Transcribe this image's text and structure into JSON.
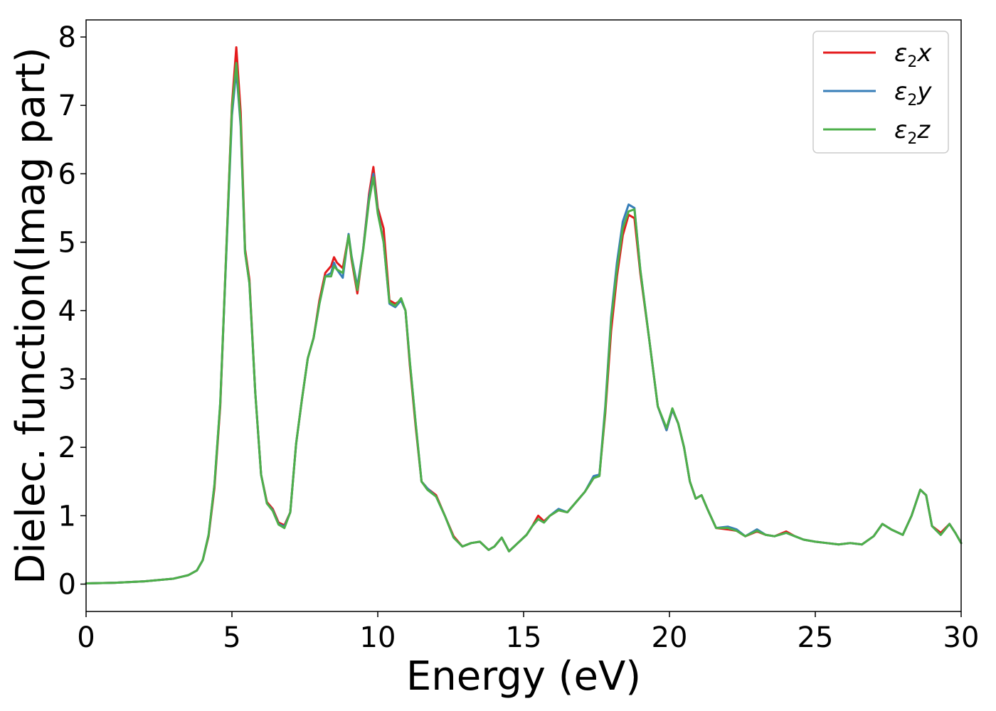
{
  "chart_data": {
    "type": "line",
    "xlabel": "Energy (eV)",
    "ylabel": "Dielec. function(Imag part)",
    "xlim": [
      0,
      30
    ],
    "ylim": [
      -0.4,
      8.25
    ],
    "xticks": [
      0,
      5,
      10,
      15,
      20,
      25,
      30
    ],
    "yticks": [
      0,
      1,
      2,
      3,
      4,
      5,
      6,
      7,
      8
    ],
    "grid": false,
    "legend_position": "top-right",
    "series": [
      {
        "name": "ε2x",
        "legend": {
          "base": "ε",
          "sub": "2",
          "var": "x"
        },
        "color": "#e41a1c",
        "x": [
          0,
          1,
          2,
          3,
          3.5,
          3.8,
          4.0,
          4.2,
          4.4,
          4.6,
          4.8,
          5.0,
          5.15,
          5.3,
          5.45,
          5.6,
          5.8,
          6.0,
          6.2,
          6.4,
          6.6,
          6.8,
          7.0,
          7.2,
          7.4,
          7.6,
          7.8,
          8.0,
          8.2,
          8.4,
          8.5,
          8.6,
          8.8,
          9.0,
          9.1,
          9.3,
          9.5,
          9.7,
          9.85,
          10.0,
          10.2,
          10.4,
          10.6,
          10.8,
          10.95,
          11.1,
          11.3,
          11.5,
          11.7,
          12.0,
          12.3,
          12.6,
          12.9,
          13.2,
          13.5,
          13.8,
          14.0,
          14.25,
          14.5,
          14.8,
          15.1,
          15.3,
          15.5,
          15.7,
          15.9,
          16.2,
          16.5,
          16.8,
          17.1,
          17.4,
          17.6,
          17.8,
          18.0,
          18.2,
          18.4,
          18.6,
          18.8,
          19.0,
          19.3,
          19.6,
          19.9,
          20.1,
          20.3,
          20.5,
          20.7,
          20.9,
          21.1,
          21.3,
          21.6,
          22.0,
          22.3,
          22.6,
          23.0,
          23.3,
          23.6,
          24.0,
          24.3,
          24.6,
          25.0,
          25.4,
          25.8,
          26.2,
          26.6,
          27.0,
          27.3,
          27.6,
          28.0,
          28.3,
          28.6,
          28.8,
          29.0,
          29.3,
          29.6,
          29.8,
          30.0
        ],
        "y": [
          0.01,
          0.02,
          0.04,
          0.08,
          0.13,
          0.2,
          0.35,
          0.7,
          1.4,
          2.6,
          4.8,
          7.0,
          7.85,
          6.9,
          4.9,
          4.45,
          2.8,
          1.6,
          1.2,
          1.1,
          0.9,
          0.86,
          1.05,
          2.05,
          2.7,
          3.3,
          3.6,
          4.15,
          4.55,
          4.65,
          4.78,
          4.7,
          4.62,
          5.1,
          4.75,
          4.25,
          4.9,
          5.7,
          6.1,
          5.5,
          5.2,
          4.15,
          4.1,
          4.15,
          4.0,
          3.2,
          2.3,
          1.5,
          1.4,
          1.3,
          1.0,
          0.7,
          0.55,
          0.6,
          0.62,
          0.5,
          0.55,
          0.68,
          0.48,
          0.6,
          0.72,
          0.85,
          1.0,
          0.92,
          1.0,
          1.08,
          1.05,
          1.2,
          1.35,
          1.55,
          1.6,
          2.5,
          3.7,
          4.5,
          5.1,
          5.4,
          5.35,
          4.55,
          3.6,
          2.6,
          2.25,
          2.55,
          2.35,
          2.0,
          1.5,
          1.25,
          1.3,
          1.1,
          0.82,
          0.8,
          0.78,
          0.7,
          0.77,
          0.72,
          0.7,
          0.77,
          0.7,
          0.65,
          0.62,
          0.6,
          0.58,
          0.6,
          0.58,
          0.7,
          0.88,
          0.8,
          0.72,
          1.0,
          1.38,
          1.3,
          0.85,
          0.75,
          0.88,
          0.75,
          0.6
        ]
      },
      {
        "name": "ε2y",
        "legend": {
          "base": "ε",
          "sub": "2",
          "var": "y"
        },
        "color": "#377eb8",
        "x": [
          0,
          1,
          2,
          3,
          3.5,
          3.8,
          4.0,
          4.2,
          4.4,
          4.6,
          4.8,
          5.0,
          5.15,
          5.3,
          5.45,
          5.6,
          5.8,
          6.0,
          6.2,
          6.4,
          6.6,
          6.8,
          7.0,
          7.2,
          7.4,
          7.6,
          7.8,
          8.0,
          8.2,
          8.4,
          8.5,
          8.6,
          8.8,
          9.0,
          9.1,
          9.3,
          9.5,
          9.7,
          9.85,
          10.0,
          10.2,
          10.4,
          10.6,
          10.8,
          10.95,
          11.1,
          11.3,
          11.5,
          11.7,
          12.0,
          12.3,
          12.6,
          12.9,
          13.2,
          13.5,
          13.8,
          14.0,
          14.25,
          14.5,
          14.8,
          15.1,
          15.3,
          15.5,
          15.7,
          15.9,
          16.2,
          16.5,
          16.8,
          17.1,
          17.4,
          17.6,
          17.8,
          18.0,
          18.2,
          18.4,
          18.6,
          18.8,
          19.0,
          19.3,
          19.6,
          19.9,
          20.1,
          20.3,
          20.5,
          20.7,
          20.9,
          21.1,
          21.3,
          21.6,
          22.0,
          22.3,
          22.6,
          23.0,
          23.3,
          23.6,
          24.0,
          24.3,
          24.6,
          25.0,
          25.4,
          25.8,
          26.2,
          26.6,
          27.0,
          27.3,
          27.6,
          28.0,
          28.3,
          28.6,
          28.8,
          29.0,
          29.3,
          29.6,
          29.8,
          30.0
        ],
        "y": [
          0.01,
          0.02,
          0.04,
          0.08,
          0.13,
          0.2,
          0.35,
          0.72,
          1.45,
          2.65,
          4.75,
          6.85,
          7.52,
          6.7,
          4.85,
          4.4,
          2.8,
          1.6,
          1.18,
          1.08,
          0.88,
          0.84,
          1.05,
          2.05,
          2.7,
          3.3,
          3.6,
          4.1,
          4.5,
          4.55,
          4.7,
          4.6,
          4.48,
          5.12,
          4.8,
          4.35,
          4.9,
          5.65,
          6.0,
          5.45,
          5.0,
          4.1,
          4.05,
          4.15,
          4.0,
          3.25,
          2.35,
          1.5,
          1.4,
          1.28,
          1.0,
          0.68,
          0.55,
          0.6,
          0.62,
          0.5,
          0.55,
          0.68,
          0.48,
          0.6,
          0.72,
          0.85,
          0.95,
          0.9,
          1.0,
          1.1,
          1.05,
          1.2,
          1.35,
          1.58,
          1.6,
          2.6,
          3.9,
          4.7,
          5.3,
          5.55,
          5.5,
          4.6,
          3.6,
          2.6,
          2.25,
          2.55,
          2.35,
          2.0,
          1.5,
          1.25,
          1.3,
          1.1,
          0.82,
          0.84,
          0.8,
          0.7,
          0.8,
          0.72,
          0.7,
          0.75,
          0.7,
          0.65,
          0.62,
          0.6,
          0.58,
          0.6,
          0.58,
          0.7,
          0.88,
          0.8,
          0.72,
          1.0,
          1.38,
          1.3,
          0.85,
          0.72,
          0.88,
          0.75,
          0.6
        ]
      },
      {
        "name": "ε2z",
        "legend": {
          "base": "ε",
          "sub": "2",
          "var": "z"
        },
        "color": "#4daf4a",
        "x": [
          0,
          1,
          2,
          3,
          3.5,
          3.8,
          4.0,
          4.2,
          4.4,
          4.6,
          4.8,
          5.0,
          5.15,
          5.3,
          5.45,
          5.6,
          5.8,
          6.0,
          6.2,
          6.4,
          6.6,
          6.8,
          7.0,
          7.2,
          7.4,
          7.6,
          7.8,
          8.0,
          8.2,
          8.4,
          8.5,
          8.6,
          8.8,
          9.0,
          9.1,
          9.3,
          9.5,
          9.7,
          9.85,
          10.0,
          10.2,
          10.4,
          10.6,
          10.8,
          10.95,
          11.1,
          11.3,
          11.5,
          11.7,
          12.0,
          12.3,
          12.6,
          12.9,
          13.2,
          13.5,
          13.8,
          14.0,
          14.25,
          14.5,
          14.8,
          15.1,
          15.3,
          15.5,
          15.7,
          15.9,
          16.2,
          16.5,
          16.8,
          17.1,
          17.4,
          17.6,
          17.8,
          18.0,
          18.2,
          18.4,
          18.6,
          18.8,
          19.0,
          19.3,
          19.6,
          19.9,
          20.1,
          20.3,
          20.5,
          20.7,
          20.9,
          21.1,
          21.3,
          21.6,
          22.0,
          22.3,
          22.6,
          23.0,
          23.3,
          23.6,
          24.0,
          24.3,
          24.6,
          25.0,
          25.4,
          25.8,
          26.2,
          26.6,
          27.0,
          27.3,
          27.6,
          28.0,
          28.3,
          28.6,
          28.8,
          29.0,
          29.3,
          29.6,
          29.8,
          30.0
        ],
        "y": [
          0.01,
          0.02,
          0.04,
          0.08,
          0.13,
          0.2,
          0.35,
          0.72,
          1.45,
          2.65,
          4.8,
          6.95,
          7.62,
          6.75,
          4.85,
          4.4,
          2.8,
          1.6,
          1.18,
          1.07,
          0.87,
          0.82,
          1.05,
          2.05,
          2.7,
          3.3,
          3.6,
          4.1,
          4.5,
          4.5,
          4.65,
          4.6,
          4.55,
          5.1,
          4.78,
          4.3,
          4.88,
          5.6,
          5.95,
          5.42,
          5.0,
          4.12,
          4.07,
          4.18,
          4.0,
          3.25,
          2.35,
          1.5,
          1.38,
          1.28,
          1.0,
          0.68,
          0.55,
          0.6,
          0.62,
          0.5,
          0.55,
          0.68,
          0.48,
          0.6,
          0.72,
          0.85,
          0.95,
          0.9,
          1.0,
          1.08,
          1.05,
          1.2,
          1.35,
          1.55,
          1.58,
          2.55,
          3.85,
          4.6,
          5.2,
          5.45,
          5.48,
          4.6,
          3.6,
          2.6,
          2.28,
          2.57,
          2.35,
          2.0,
          1.5,
          1.25,
          1.3,
          1.1,
          0.82,
          0.82,
          0.78,
          0.7,
          0.78,
          0.72,
          0.7,
          0.75,
          0.7,
          0.65,
          0.62,
          0.6,
          0.58,
          0.6,
          0.58,
          0.7,
          0.88,
          0.8,
          0.72,
          1.0,
          1.38,
          1.3,
          0.85,
          0.72,
          0.88,
          0.75,
          0.6
        ]
      }
    ]
  }
}
